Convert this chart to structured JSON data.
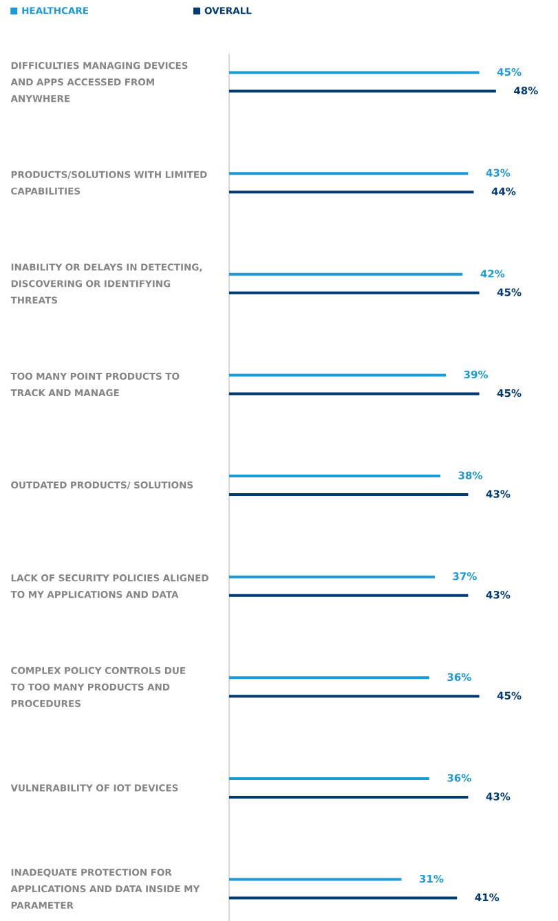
{
  "chart_data": {
    "type": "bar",
    "orientation": "horizontal",
    "categories": [
      "DIFFICULTIES MANAGING DEVICES AND APPS ACCESSED FROM ANYWHERE",
      "PRODUCTS/SOLUTIONS WITH LIMITED CAPABILITIES",
      "INABILITY OR DELAYS IN DETECTING, DISCOVERING OR IDENTIFYING THREATS",
      "TOO MANY POINT PRODUCTS TO TRACK AND MANAGE",
      "OUTDATED PRODUCTS/ SOLUTIONS",
      "LACK OF SECURITY POLICIES ALIGNED TO MY APPLICATIONS AND DATA",
      "COMPLEX POLICY CONTROLS DUE TO TOO MANY PRODUCTS AND PROCEDURES",
      "VULNERABILITY OF IOT DEVICES",
      "INADEQUATE PROTECTION FOR APPLICATIONS AND DATA INSIDE MY PARAMETER"
    ],
    "series": [
      {
        "name": "HEALTHCARE",
        "color": "#1a9ad6",
        "values": [
          45,
          43,
          42,
          39,
          38,
          37,
          36,
          36,
          31
        ],
        "value_labels": [
          "45%",
          "43%",
          "42%",
          "39%",
          "38%",
          "37%",
          "36%",
          "36%",
          "31%"
        ]
      },
      {
        "name": "OVERALL",
        "color": "#003a70",
        "values": [
          48,
          44,
          45,
          45,
          43,
          43,
          45,
          43,
          41
        ],
        "value_labels": [
          "48%",
          "44%",
          "45%",
          "45%",
          "43%",
          "43%",
          "45%",
          "43%",
          "41%"
        ]
      }
    ],
    "legend": "top left"
  }
}
